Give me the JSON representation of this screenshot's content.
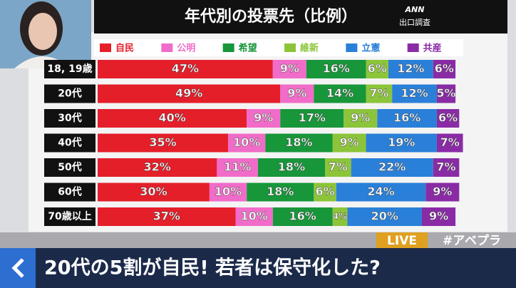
{
  "chart_data": {
    "type": "stacked-bar-horizontal",
    "title": "年代別の投票先（比例）",
    "source": [
      "ANN",
      "出口調査"
    ],
    "categories": [
      "18, 19歳",
      "20代",
      "30代",
      "40代",
      "50代",
      "60代",
      "70歳以上"
    ],
    "series": [
      {
        "name": "自民",
        "color": "#e41f2a",
        "values": [
          47,
          49,
          40,
          35,
          32,
          30,
          37
        ],
        "value_labels": [
          "47%",
          "49%",
          "40%",
          "35%",
          "32%",
          "30%",
          "37%"
        ]
      },
      {
        "name": "公明",
        "color": "#f06cc8",
        "values": [
          9,
          9,
          9,
          10,
          11,
          10,
          10
        ],
        "value_labels": [
          "9%",
          "9%",
          "9%",
          "10%",
          "11%",
          "10%",
          "10%"
        ]
      },
      {
        "name": "希望",
        "color": "#18963a",
        "values": [
          16,
          14,
          17,
          18,
          18,
          18,
          16
        ],
        "value_labels": [
          "16%",
          "14%",
          "17%",
          "18%",
          "18%",
          "18%",
          "16%"
        ]
      },
      {
        "name": "維新",
        "color": "#8cc43a",
        "values": [
          6,
          7,
          9,
          9,
          7,
          6,
          4
        ],
        "value_labels": [
          "6%",
          "7%",
          "9%",
          "9%",
          "7%",
          "6%",
          "4%"
        ]
      },
      {
        "name": "立憲",
        "color": "#2a80d8",
        "values": [
          12,
          12,
          16,
          19,
          22,
          24,
          20
        ],
        "value_labels": [
          "12%",
          "12%",
          "16%",
          "19%",
          "22%",
          "24%",
          "20%"
        ]
      },
      {
        "name": "共産",
        "color": "#8a2ba6",
        "values": [
          6,
          5,
          6,
          7,
          7,
          9,
          9
        ],
        "value_labels": [
          "6%",
          "5%",
          "6%",
          "7%",
          "7%",
          "9%",
          "9%"
        ]
      }
    ],
    "live": "LIVE",
    "hashtag": "#アベプラ",
    "caption": "20代の5割が自民! 若者は保守化した?"
  }
}
